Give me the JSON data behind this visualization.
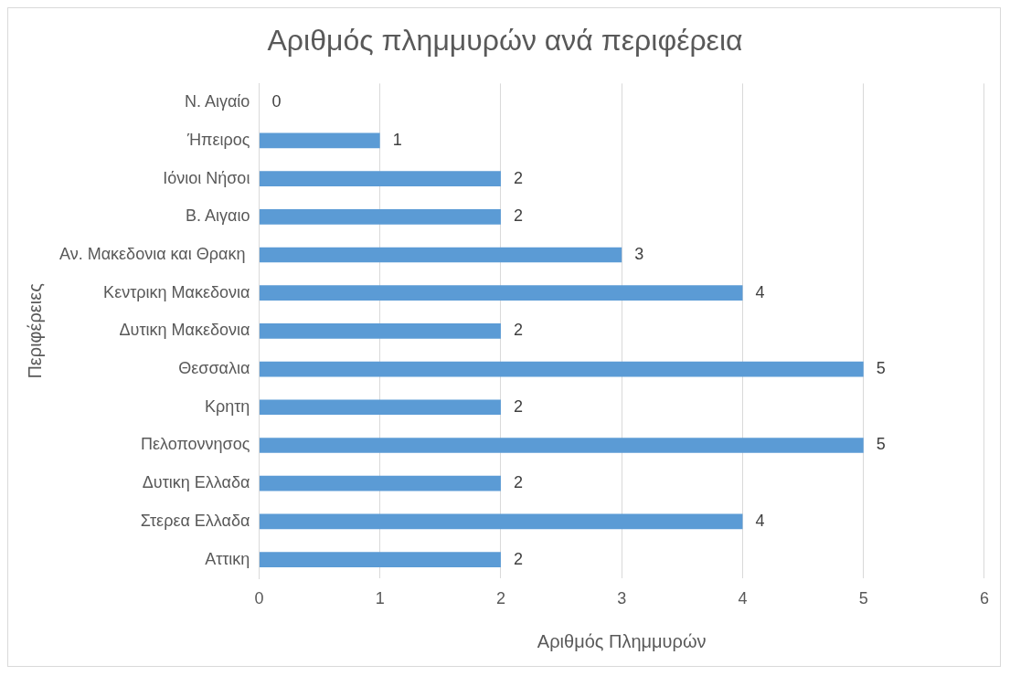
{
  "chart_data": {
    "type": "bar",
    "orientation": "horizontal",
    "title": "Αριθμός πλημμυρών ανά περιφέρεια",
    "xlabel": "Αριθμός Πλημμυρών",
    "ylabel": "Περιφέρειες",
    "categories": [
      "Ν. Αιγαίο",
      "Ήπειρος",
      "Ιόνιοι Νήσοι",
      "Β. Αιγαιο",
      "Αν. Μακεδονια και Θρακη ",
      "Κεντρικη Μακεδονια",
      "Δυτικη Μακεδονια",
      "Θεσσαλια",
      "Κρητη",
      "Πελοποννησος",
      "Δυτικη Ελλαδα",
      "Στερεα Ελλαδα",
      "Αττικη"
    ],
    "values": [
      0,
      1,
      2,
      2,
      3,
      4,
      2,
      5,
      2,
      5,
      2,
      4,
      2
    ],
    "color": "#5b9bd5",
    "xlim": [
      0,
      6
    ],
    "xticks": [
      0,
      1,
      2,
      3,
      4,
      5,
      6
    ],
    "grid": "x",
    "data_labels": true
  }
}
